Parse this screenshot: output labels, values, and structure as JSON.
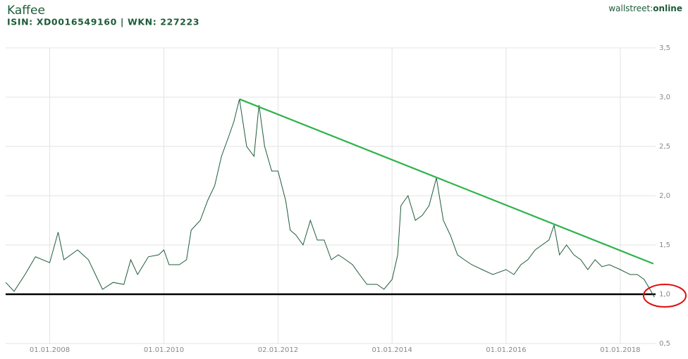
{
  "chart_data": {
    "type": "line",
    "title": "Kaffee",
    "subtitle": "ISIN: XD0016549160 | WKN: 227223",
    "brand_prefix": "wallstreet:",
    "brand_suffix": "online",
    "x": [
      "2007-03-25",
      "2007-05-18",
      "2007-07-27",
      "2007-10-02",
      "2008-01-01",
      "2008-02-24",
      "2008-04-01",
      "2008-06-28",
      "2008-09-05",
      "2008-10-20",
      "2008-12-04",
      "2009-02-10",
      "2009-04-20",
      "2009-06-03",
      "2009-07-17",
      "2009-09-24",
      "2009-11-29",
      "2010-01-01",
      "2010-02-03",
      "2010-04-10",
      "2010-05-26",
      "2010-06-25",
      "2010-08-22",
      "2010-10-08",
      "2010-11-22",
      "2011-01-05",
      "2011-02-20",
      "2011-03-25",
      "2011-04-30",
      "2011-06-15",
      "2011-08-01",
      "2011-09-02",
      "2011-10-08",
      "2011-11-22",
      "2012-01-02",
      "2012-02-20",
      "2012-03-20",
      "2012-04-26",
      "2012-06-10",
      "2012-07-27",
      "2012-09-09",
      "2012-10-23",
      "2012-12-08",
      "2013-01-22",
      "2013-03-10",
      "2013-04-23",
      "2013-06-07",
      "2013-07-24",
      "2013-09-27",
      "2013-11-10",
      "2014-01-01",
      "2014-02-06",
      "2014-02-27",
      "2014-04-13",
      "2014-05-30",
      "2014-07-13",
      "2014-08-26",
      "2014-10-12",
      "2014-11-25",
      "2015-01-09",
      "2015-02-24",
      "2015-04-09",
      "2015-05-26",
      "2015-08-01",
      "2015-10-08",
      "2016-01-01",
      "2016-02-20",
      "2016-04-05",
      "2016-05-19",
      "2016-07-05",
      "2016-08-18",
      "2016-10-01",
      "2016-11-03",
      "2016-12-08",
      "2017-01-22",
      "2017-03-10",
      "2017-04-23",
      "2017-06-07",
      "2017-07-24",
      "2017-09-06",
      "2017-10-23",
      "2018-01-01",
      "2018-03-05",
      "2018-04-20",
      "2018-06-03",
      "2018-07-17",
      "2018-08-08"
    ],
    "series": [
      {
        "name": "Kaffee",
        "color": "#1e5c3a",
        "values": [
          1.12,
          1.03,
          1.2,
          1.38,
          1.32,
          1.63,
          1.35,
          1.45,
          1.35,
          1.2,
          1.05,
          1.12,
          1.1,
          1.35,
          1.2,
          1.38,
          1.4,
          1.45,
          1.3,
          1.3,
          1.35,
          1.65,
          1.75,
          1.95,
          2.1,
          2.4,
          2.6,
          2.75,
          2.98,
          2.5,
          2.4,
          2.92,
          2.5,
          2.25,
          2.25,
          1.95,
          1.65,
          1.6,
          1.5,
          1.75,
          1.55,
          1.55,
          1.35,
          1.4,
          1.35,
          1.3,
          1.2,
          1.1,
          1.1,
          1.05,
          1.15,
          1.4,
          1.9,
          2.0,
          1.75,
          1.8,
          1.9,
          2.18,
          1.75,
          1.6,
          1.4,
          1.35,
          1.3,
          1.25,
          1.2,
          1.25,
          1.2,
          1.3,
          1.35,
          1.45,
          1.5,
          1.55,
          1.7,
          1.4,
          1.5,
          1.4,
          1.35,
          1.25,
          1.35,
          1.28,
          1.3,
          1.25,
          1.2,
          1.2,
          1.15,
          1.03,
          0.97
        ]
      }
    ],
    "trendline": {
      "color": "#2db34a",
      "x": [
        "2011-04-30",
        "2018-08-01"
      ],
      "values": [
        2.98,
        1.31
      ]
    },
    "support_level": {
      "color": "#000000",
      "value": 1.0
    },
    "xlim": [
      "2007-03-25",
      "2018-08-15"
    ],
    "xticks": [
      {
        "value": "2008-01-01",
        "label": "01.01.2008"
      },
      {
        "value": "2010-01-01",
        "label": "01.01.2010"
      },
      {
        "value": "2012-01-02",
        "label": "02.01.2012"
      },
      {
        "value": "2014-01-01",
        "label": "01.01.2014"
      },
      {
        "value": "2016-01-01",
        "label": "01.01.2016"
      },
      {
        "value": "2018-01-01",
        "label": "01.01.2018"
      }
    ],
    "ylim": [
      0.5,
      3.5
    ],
    "yticks": [
      {
        "value": 0.5,
        "label": "0,5"
      },
      {
        "value": 1.0,
        "label": "1,0"
      },
      {
        "value": 1.5,
        "label": "1,5"
      },
      {
        "value": 2.0,
        "label": "2,0"
      },
      {
        "value": 2.5,
        "label": "2,5"
      },
      {
        "value": 3.0,
        "label": "3,0"
      },
      {
        "value": 3.5,
        "label": "3,5"
      }
    ],
    "grid": true
  }
}
